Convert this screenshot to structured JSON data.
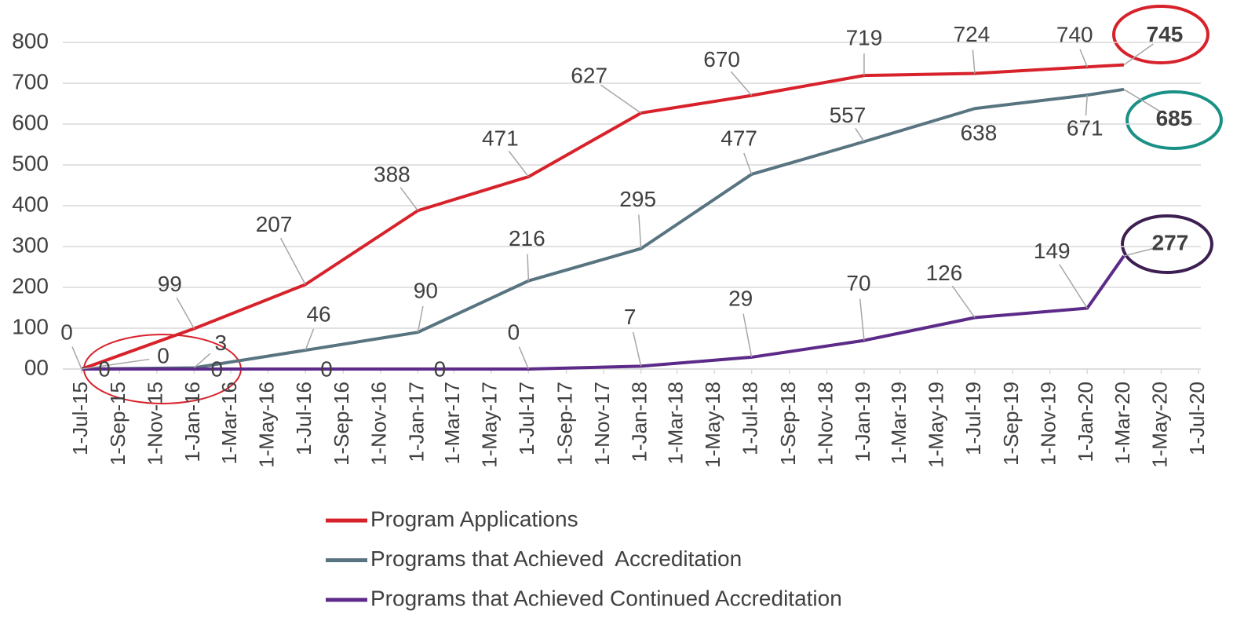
{
  "chart_data": {
    "type": "line",
    "x": [
      "2015-07-01",
      "2016-01-01",
      "2016-07-01",
      "2017-01-01",
      "2017-07-01",
      "2018-01-01",
      "2018-07-01",
      "2019-01-01",
      "2019-07-01",
      "2020-01-01",
      "2020-03-01"
    ],
    "series": [
      {
        "name": "Program Applications",
        "color": "#d7222b",
        "values": [
          0,
          99,
          207,
          388,
          471,
          627,
          670,
          719,
          724,
          740,
          745
        ]
      },
      {
        "name": "Programs that Achieved  Accreditation",
        "color": "#587480",
        "values": [
          0,
          3,
          46,
          90,
          216,
          295,
          477,
          557,
          638,
          671,
          685
        ]
      },
      {
        "name": "Programs that Achieved Continued Accreditation",
        "color": "#5c2a88",
        "values": [
          0,
          0,
          0,
          0,
          0,
          7,
          29,
          70,
          126,
          149,
          277
        ]
      }
    ],
    "xlim": [
      "2015-07-01",
      "2020-07-01"
    ],
    "xticks": [
      {
        "value": "2015-07-01",
        "label": "1-Jul-15"
      },
      {
        "value": "2015-09-01",
        "label": "1-Sep-15"
      },
      {
        "value": "2015-11-01",
        "label": "1-Nov-15"
      },
      {
        "value": "2016-01-01",
        "label": "1-Jan-16"
      },
      {
        "value": "2016-03-01",
        "label": "1-Mar-16"
      },
      {
        "value": "2016-05-01",
        "label": "1-May-16"
      },
      {
        "value": "2016-07-01",
        "label": "1-Jul-16"
      },
      {
        "value": "2016-09-01",
        "label": "1-Sep-16"
      },
      {
        "value": "2016-11-01",
        "label": "1-Nov-16"
      },
      {
        "value": "2017-01-01",
        "label": "1-Jan-17"
      },
      {
        "value": "2017-03-01",
        "label": "1-Mar-17"
      },
      {
        "value": "2017-05-01",
        "label": "1-May-17"
      },
      {
        "value": "2017-07-01",
        "label": "1-Jul-17"
      },
      {
        "value": "2017-09-01",
        "label": "1-Sep-17"
      },
      {
        "value": "2017-11-01",
        "label": "1-Nov-17"
      },
      {
        "value": "2018-01-01",
        "label": "1-Jan-18"
      },
      {
        "value": "2018-03-01",
        "label": "1-Mar-18"
      },
      {
        "value": "2018-05-01",
        "label": "1-May-18"
      },
      {
        "value": "2018-07-01",
        "label": "1-Jul-18"
      },
      {
        "value": "2018-09-01",
        "label": "1-Sep-18"
      },
      {
        "value": "2018-11-01",
        "label": "1-Nov-18"
      },
      {
        "value": "2019-01-01",
        "label": "1-Jan-19"
      },
      {
        "value": "2019-03-01",
        "label": "1-Mar-19"
      },
      {
        "value": "2019-05-01",
        "label": "1-May-19"
      },
      {
        "value": "2019-07-01",
        "label": "1-Jul-19"
      },
      {
        "value": "2019-09-01",
        "label": "1-Sep-19"
      },
      {
        "value": "2019-11-01",
        "label": "1-Nov-19"
      },
      {
        "value": "2020-01-01",
        "label": "1-Jan-20"
      },
      {
        "value": "2020-03-01",
        "label": "1-Mar-20"
      },
      {
        "value": "2020-05-01",
        "label": "1-May-20"
      },
      {
        "value": "2020-07-01",
        "label": "1-Jul-20"
      }
    ],
    "ylim": [
      0,
      800
    ],
    "yticks": [
      {
        "value": 0,
        "label": "00"
      },
      100,
      200,
      300,
      400,
      500,
      600,
      700,
      800
    ],
    "grid": true
  }
}
